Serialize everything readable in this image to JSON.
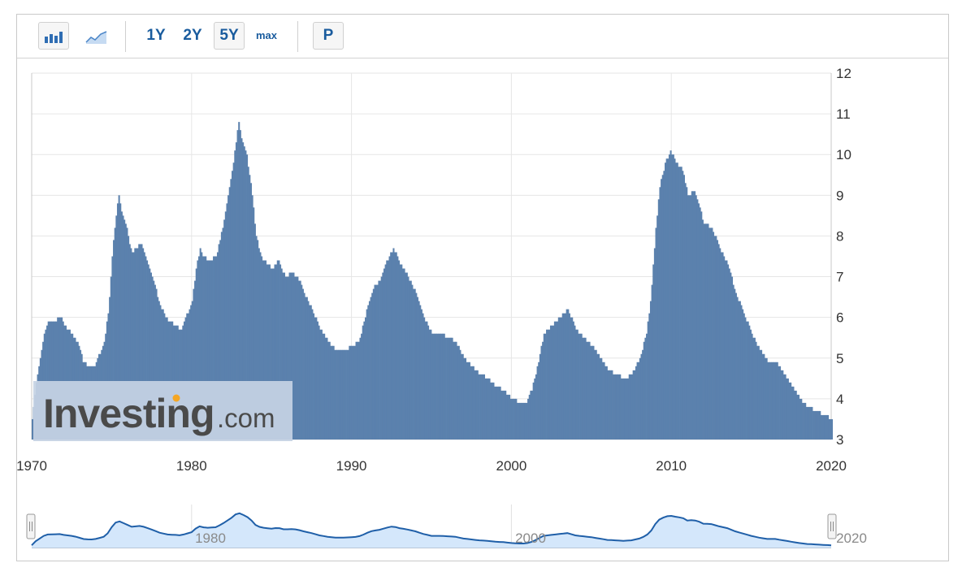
{
  "toolbar": {
    "chart_type_buttons": [
      {
        "name": "bar-chart-icon",
        "active": true
      },
      {
        "name": "area-chart-icon",
        "active": false
      }
    ],
    "ranges": [
      {
        "label": "1Y",
        "active": false
      },
      {
        "label": "2Y",
        "active": false
      },
      {
        "label": "5Y",
        "active": true
      },
      {
        "label": "max",
        "active": false
      }
    ],
    "p_button": "P"
  },
  "watermark": {
    "brand": "Investing",
    "suffix": ".com"
  },
  "colors": {
    "bar": "#5b81ad",
    "nav_line": "#1f5fa8",
    "nav_fill": "#d4e7fb",
    "grid": "#e6e6e6",
    "watermark_bg": "#c5d3e4"
  },
  "chart_data": {
    "type": "bar",
    "x_range": [
      1970,
      2020
    ],
    "ylim": [
      3,
      12
    ],
    "y_ticks": [
      3,
      4,
      5,
      6,
      7,
      8,
      9,
      10,
      11,
      12
    ],
    "x_ticks": [
      1970,
      1980,
      1990,
      2000,
      2010,
      2020
    ],
    "y_axis_position": "right",
    "grid": true,
    "points": [
      [
        1970.0,
        3.5
      ],
      [
        1970.25,
        4.4
      ],
      [
        1970.5,
        5.0
      ],
      [
        1970.75,
        5.6
      ],
      [
        1971.0,
        5.9
      ],
      [
        1971.5,
        5.95
      ],
      [
        1971.8,
        6.0
      ],
      [
        1972.0,
        5.8
      ],
      [
        1972.5,
        5.6
      ],
      [
        1972.9,
        5.3
      ],
      [
        1973.2,
        4.9
      ],
      [
        1973.6,
        4.8
      ],
      [
        1973.9,
        4.8
      ],
      [
        1974.2,
        5.1
      ],
      [
        1974.5,
        5.4
      ],
      [
        1974.8,
        6.3
      ],
      [
        1975.0,
        7.5
      ],
      [
        1975.2,
        8.4
      ],
      [
        1975.4,
        9.0
      ],
      [
        1975.6,
        8.6
      ],
      [
        1975.9,
        8.2
      ],
      [
        1976.2,
        7.6
      ],
      [
        1976.5,
        7.7
      ],
      [
        1976.8,
        7.8
      ],
      [
        1977.0,
        7.6
      ],
      [
        1977.5,
        7.0
      ],
      [
        1978.0,
        6.3
      ],
      [
        1978.5,
        5.9
      ],
      [
        1979.0,
        5.8
      ],
      [
        1979.3,
        5.7
      ],
      [
        1979.6,
        6.0
      ],
      [
        1980.0,
        6.4
      ],
      [
        1980.25,
        7.2
      ],
      [
        1980.5,
        7.7
      ],
      [
        1980.7,
        7.5
      ],
      [
        1981.0,
        7.4
      ],
      [
        1981.5,
        7.5
      ],
      [
        1981.9,
        8.2
      ],
      [
        1982.2,
        8.9
      ],
      [
        1982.5,
        9.6
      ],
      [
        1982.7,
        10.2
      ],
      [
        1982.9,
        10.8
      ],
      [
        1983.1,
        10.4
      ],
      [
        1983.4,
        10.0
      ],
      [
        1983.7,
        9.2
      ],
      [
        1984.0,
        8.0
      ],
      [
        1984.3,
        7.5
      ],
      [
        1984.7,
        7.3
      ],
      [
        1985.0,
        7.2
      ],
      [
        1985.4,
        7.4
      ],
      [
        1985.8,
        7.0
      ],
      [
        1986.2,
        7.1
      ],
      [
        1986.6,
        7.0
      ],
      [
        1987.0,
        6.6
      ],
      [
        1987.5,
        6.2
      ],
      [
        1988.0,
        5.7
      ],
      [
        1988.5,
        5.4
      ],
      [
        1989.0,
        5.2
      ],
      [
        1989.5,
        5.2
      ],
      [
        1990.0,
        5.3
      ],
      [
        1990.4,
        5.4
      ],
      [
        1990.7,
        5.8
      ],
      [
        1991.0,
        6.3
      ],
      [
        1991.3,
        6.7
      ],
      [
        1991.7,
        6.9
      ],
      [
        1992.0,
        7.2
      ],
      [
        1992.4,
        7.6
      ],
      [
        1992.6,
        7.7
      ],
      [
        1993.0,
        7.3
      ],
      [
        1993.5,
        7.0
      ],
      [
        1994.0,
        6.6
      ],
      [
        1994.5,
        6.0
      ],
      [
        1995.0,
        5.6
      ],
      [
        1995.5,
        5.6
      ],
      [
        1996.0,
        5.5
      ],
      [
        1996.5,
        5.4
      ],
      [
        1997.0,
        5.0
      ],
      [
        1997.5,
        4.8
      ],
      [
        1998.0,
        4.6
      ],
      [
        1998.5,
        4.5
      ],
      [
        1999.0,
        4.3
      ],
      [
        1999.5,
        4.2
      ],
      [
        2000.0,
        4.0
      ],
      [
        2000.5,
        3.9
      ],
      [
        2000.9,
        3.9
      ],
      [
        2001.3,
        4.3
      ],
      [
        2001.6,
        4.8
      ],
      [
        2002.0,
        5.6
      ],
      [
        2002.5,
        5.8
      ],
      [
        2003.0,
        6.0
      ],
      [
        2003.5,
        6.2
      ],
      [
        2004.0,
        5.7
      ],
      [
        2004.5,
        5.5
      ],
      [
        2005.0,
        5.3
      ],
      [
        2005.5,
        5.0
      ],
      [
        2006.0,
        4.7
      ],
      [
        2006.5,
        4.6
      ],
      [
        2007.0,
        4.5
      ],
      [
        2007.5,
        4.6
      ],
      [
        2008.0,
        5.0
      ],
      [
        2008.4,
        5.6
      ],
      [
        2008.7,
        6.5
      ],
      [
        2009.0,
        8.2
      ],
      [
        2009.3,
        9.4
      ],
      [
        2009.7,
        9.9
      ],
      [
        2009.9,
        10.1
      ],
      [
        2010.3,
        9.8
      ],
      [
        2010.7,
        9.6
      ],
      [
        2011.0,
        9.0
      ],
      [
        2011.4,
        9.1
      ],
      [
        2011.7,
        8.8
      ],
      [
        2012.0,
        8.3
      ],
      [
        2012.5,
        8.2
      ],
      [
        2013.0,
        7.7
      ],
      [
        2013.5,
        7.3
      ],
      [
        2014.0,
        6.6
      ],
      [
        2014.5,
        6.1
      ],
      [
        2015.0,
        5.6
      ],
      [
        2015.5,
        5.2
      ],
      [
        2016.0,
        4.9
      ],
      [
        2016.5,
        4.9
      ],
      [
        2017.0,
        4.6
      ],
      [
        2017.5,
        4.3
      ],
      [
        2018.0,
        4.0
      ],
      [
        2018.5,
        3.8
      ],
      [
        2019.0,
        3.7
      ],
      [
        2019.5,
        3.6
      ],
      [
        2020.0,
        3.5
      ]
    ]
  },
  "navigator": {
    "labels": [
      "1980",
      "2000",
      "2020"
    ]
  }
}
